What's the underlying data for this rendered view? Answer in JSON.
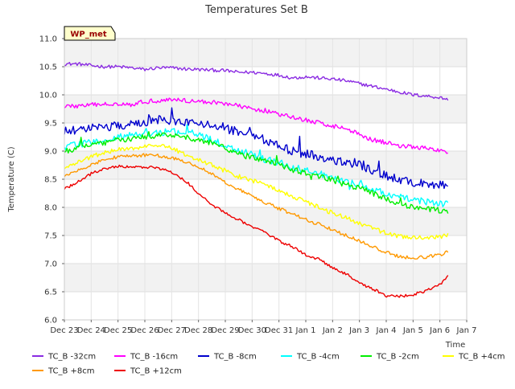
{
  "chart_data": {
    "type": "line",
    "title": "Temperatures Set B",
    "xlabel": "Time",
    "ylabel": "Temperature (C)",
    "ylim": [
      6.0,
      11.0
    ],
    "xlim": [
      0,
      15
    ],
    "x_tick_labels": [
      "Dec 23",
      "Dec 24",
      "Dec 25",
      "Dec 26",
      "Dec 27",
      "Dec 28",
      "Dec 29",
      "Dec 30",
      "Dec 31",
      "Jan 1",
      "Jan 2",
      "Jan 3",
      "Jan 4",
      "Jan 5",
      "Jan 6",
      "Jan 7"
    ],
    "y_ticks": [
      6.0,
      6.5,
      7.0,
      7.5,
      8.0,
      8.5,
      9.0,
      9.5,
      10.0,
      10.5,
      11.0
    ],
    "y_tick_labels": [
      "6.0",
      "6.5",
      "7.0",
      "7.5",
      "8.0",
      "8.5",
      "9.0",
      "9.5",
      "10.0",
      "10.5",
      "11.0"
    ],
    "site_label": "WP_met",
    "legend_position": "bottom",
    "x": [
      0,
      0.5,
      1,
      1.5,
      2,
      2.5,
      3,
      3.5,
      4,
      4.5,
      5,
      5.5,
      6,
      6.5,
      7,
      7.5,
      8,
      8.5,
      9,
      9.5,
      10,
      10.5,
      11,
      11.5,
      12,
      12.5,
      13,
      13.5,
      14,
      14.3
    ],
    "series": [
      {
        "name": "TC_B -32cm",
        "color": "#8a2be2",
        "noise": 0.03,
        "values": [
          10.55,
          10.55,
          10.52,
          10.5,
          10.5,
          10.48,
          10.45,
          10.48,
          10.48,
          10.46,
          10.45,
          10.44,
          10.43,
          10.4,
          10.4,
          10.38,
          10.35,
          10.3,
          10.32,
          10.3,
          10.28,
          10.25,
          10.2,
          10.15,
          10.1,
          10.05,
          10.0,
          9.98,
          9.95,
          9.92
        ]
      },
      {
        "name": "TC_B -16cm",
        "color": "#ff00ff",
        "noise": 0.04,
        "values": [
          9.8,
          9.8,
          9.82,
          9.83,
          9.85,
          9.83,
          9.88,
          9.9,
          9.92,
          9.9,
          9.88,
          9.87,
          9.85,
          9.8,
          9.75,
          9.72,
          9.65,
          9.6,
          9.55,
          9.5,
          9.45,
          9.4,
          9.3,
          9.2,
          9.15,
          9.1,
          9.07,
          9.05,
          9.0,
          8.98
        ]
      },
      {
        "name": "TC_B -8cm",
        "color": "#0000cd",
        "noise": 0.08,
        "values": [
          9.35,
          9.38,
          9.4,
          9.42,
          9.45,
          9.48,
          9.5,
          9.55,
          9.55,
          9.52,
          9.48,
          9.45,
          9.4,
          9.35,
          9.3,
          9.2,
          9.1,
          9.0,
          8.95,
          8.9,
          8.85,
          8.8,
          8.75,
          8.65,
          8.55,
          8.5,
          8.45,
          8.42,
          8.4,
          8.38
        ]
      },
      {
        "name": "TC_B -4cm",
        "color": "#00ffff",
        "noise": 0.06,
        "values": [
          9.1,
          9.12,
          9.15,
          9.2,
          9.25,
          9.28,
          9.3,
          9.32,
          9.35,
          9.32,
          9.28,
          9.2,
          9.1,
          9.0,
          8.95,
          8.85,
          8.8,
          8.72,
          8.65,
          8.6,
          8.52,
          8.45,
          8.4,
          8.32,
          8.25,
          8.18,
          8.13,
          8.1,
          8.07,
          8.05
        ]
      },
      {
        "name": "TC_B -2cm",
        "color": "#00ee00",
        "noise": 0.05,
        "values": [
          9.0,
          9.05,
          9.1,
          9.15,
          9.2,
          9.22,
          9.25,
          9.28,
          9.3,
          9.25,
          9.2,
          9.15,
          9.05,
          8.95,
          8.9,
          8.82,
          8.75,
          8.68,
          8.6,
          8.55,
          8.48,
          8.4,
          8.35,
          8.25,
          8.15,
          8.05,
          8.0,
          7.97,
          7.95,
          7.94
        ]
      },
      {
        "name": "TC_B +4cm",
        "color": "#ffff00",
        "noise": 0.04,
        "values": [
          8.7,
          8.8,
          8.9,
          8.98,
          9.02,
          9.05,
          9.08,
          9.1,
          9.05,
          8.95,
          8.85,
          8.75,
          8.65,
          8.55,
          8.48,
          8.4,
          8.3,
          8.2,
          8.1,
          8.0,
          7.9,
          7.82,
          7.72,
          7.62,
          7.55,
          7.48,
          7.46,
          7.47,
          7.48,
          7.5
        ]
      },
      {
        "name": "TC_B +8cm",
        "color": "#ff9900",
        "noise": 0.03,
        "values": [
          8.55,
          8.65,
          8.75,
          8.85,
          8.9,
          8.92,
          8.93,
          8.92,
          8.88,
          8.82,
          8.72,
          8.6,
          8.45,
          8.32,
          8.2,
          8.08,
          7.98,
          7.88,
          7.78,
          7.7,
          7.6,
          7.5,
          7.4,
          7.3,
          7.2,
          7.12,
          7.1,
          7.12,
          7.15,
          7.22
        ]
      },
      {
        "name": "TC_B +12cm",
        "color": "#ee0000",
        "noise": 0.025,
        "values": [
          8.32,
          8.45,
          8.6,
          8.68,
          8.73,
          8.72,
          8.72,
          8.7,
          8.62,
          8.48,
          8.25,
          8.05,
          7.9,
          7.78,
          7.65,
          7.55,
          7.4,
          7.3,
          7.15,
          7.08,
          6.92,
          6.82,
          6.65,
          6.55,
          6.42,
          6.42,
          6.45,
          6.52,
          6.62,
          6.8
        ]
      }
    ]
  }
}
